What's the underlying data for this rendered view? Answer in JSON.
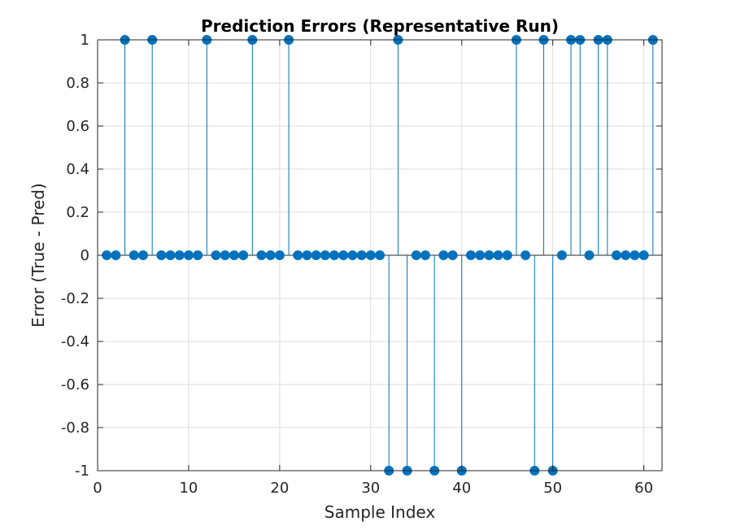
{
  "chart_data": {
    "type": "scatter",
    "subtype": "stem",
    "title": "Prediction Errors (Representative Run)",
    "xlabel": "Sample Index",
    "ylabel": "Error (True - Pred)",
    "xlim": [
      0,
      62
    ],
    "ylim": [
      -1,
      1
    ],
    "x_ticks": [
      0,
      10,
      20,
      30,
      40,
      50,
      60
    ],
    "x_tick_labels": [
      "0",
      "10",
      "20",
      "30",
      "40",
      "50",
      "60"
    ],
    "y_ticks": [
      -1,
      -0.8,
      -0.6,
      -0.4,
      -0.2,
      0,
      0.2,
      0.4,
      0.6,
      0.8,
      1
    ],
    "y_tick_labels": [
      "-1",
      "-0.8",
      "-0.6",
      "-0.4",
      "-0.2",
      "0",
      "0.2",
      "0.4",
      "0.6",
      "0.8",
      "1"
    ],
    "grid": true,
    "series_color": "#0072BD",
    "x": [
      1,
      2,
      3,
      4,
      5,
      6,
      7,
      8,
      9,
      10,
      11,
      12,
      13,
      14,
      15,
      16,
      17,
      18,
      19,
      20,
      21,
      22,
      23,
      24,
      25,
      26,
      27,
      28,
      29,
      30,
      31,
      32,
      33,
      34,
      35,
      36,
      37,
      38,
      39,
      40,
      41,
      42,
      43,
      44,
      45,
      46,
      47,
      48,
      49,
      50,
      51,
      52,
      53,
      54,
      55,
      56,
      57,
      58,
      59,
      60,
      61
    ],
    "values": [
      0,
      0,
      1,
      0,
      0,
      1,
      0,
      0,
      0,
      0,
      0,
      1,
      0,
      0,
      0,
      0,
      1,
      0,
      0,
      0,
      1,
      0,
      0,
      0,
      0,
      0,
      0,
      0,
      0,
      0,
      0,
      -1,
      1,
      -1,
      0,
      0,
      -1,
      0,
      0,
      -1,
      0,
      0,
      0,
      0,
      0,
      1,
      0,
      -1,
      1,
      -1,
      0,
      1,
      1,
      0,
      1,
      1,
      0,
      0,
      0,
      0,
      1
    ]
  }
}
